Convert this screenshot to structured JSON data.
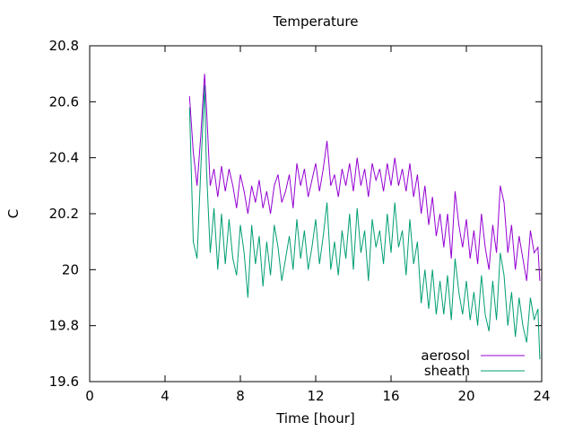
{
  "chart_data": {
    "type": "line",
    "title": "Temperature",
    "xlabel": "Time [hour]",
    "ylabel": "C",
    "xlim": [
      0,
      24
    ],
    "ylim": [
      19.6,
      20.8
    ],
    "xticks": [
      0,
      4,
      8,
      12,
      16,
      20,
      24
    ],
    "yticks": [
      19.6,
      19.8,
      20,
      20.2,
      20.4,
      20.6,
      20.8
    ],
    "xtick_labels": [
      "0",
      "4",
      "8",
      "12",
      "16",
      "20",
      "24"
    ],
    "ytick_labels": [
      "19.6",
      "19.8",
      "20",
      "20.2",
      "20.4",
      "20.6",
      "20.8"
    ],
    "grid": false,
    "legend_position": "bottom-right",
    "series": [
      {
        "name": "aerosol",
        "color": "#9400d3",
        "x": [
          5.3,
          5.5,
          5.7,
          5.9,
          6.1,
          6.2,
          6.4,
          6.6,
          6.8,
          7.0,
          7.2,
          7.4,
          7.6,
          7.8,
          8.0,
          8.2,
          8.4,
          8.6,
          8.8,
          9.0,
          9.2,
          9.4,
          9.6,
          9.8,
          10.0,
          10.2,
          10.4,
          10.6,
          10.8,
          11.0,
          11.2,
          11.4,
          11.6,
          11.8,
          12.0,
          12.2,
          12.4,
          12.6,
          12.8,
          13.0,
          13.2,
          13.4,
          13.6,
          13.8,
          14.0,
          14.2,
          14.4,
          14.6,
          14.8,
          15.0,
          15.2,
          15.4,
          15.6,
          15.8,
          16.0,
          16.2,
          16.4,
          16.6,
          16.8,
          17.0,
          17.2,
          17.4,
          17.6,
          17.8,
          18.0,
          18.2,
          18.4,
          18.6,
          18.8,
          19.0,
          19.2,
          19.4,
          19.6,
          19.8,
          20.0,
          20.2,
          20.4,
          20.6,
          20.8,
          21.0,
          21.2,
          21.4,
          21.6,
          21.8,
          22.0,
          22.2,
          22.4,
          22.6,
          22.8,
          23.0,
          23.2,
          23.4,
          23.6,
          23.8,
          23.9
        ],
        "values": [
          20.62,
          20.42,
          20.3,
          20.48,
          20.7,
          20.58,
          20.3,
          20.36,
          20.26,
          20.37,
          20.28,
          20.36,
          20.3,
          20.22,
          20.34,
          20.28,
          20.2,
          20.3,
          20.24,
          20.32,
          20.22,
          20.28,
          20.2,
          20.3,
          20.34,
          20.24,
          20.28,
          20.34,
          20.22,
          20.38,
          20.3,
          20.36,
          20.26,
          20.32,
          20.38,
          20.28,
          20.36,
          20.46,
          20.3,
          20.34,
          20.26,
          20.36,
          20.3,
          20.38,
          20.28,
          20.4,
          20.3,
          20.36,
          20.26,
          20.38,
          20.32,
          20.36,
          20.28,
          20.38,
          20.3,
          20.4,
          20.3,
          20.36,
          20.28,
          20.38,
          20.26,
          20.34,
          20.2,
          20.3,
          20.16,
          20.26,
          20.12,
          20.2,
          20.08,
          20.2,
          20.04,
          20.28,
          20.16,
          20.08,
          20.18,
          20.04,
          20.14,
          20.02,
          20.2,
          20.08,
          20.0,
          20.16,
          20.06,
          20.3,
          20.24,
          20.06,
          20.16,
          20.0,
          20.12,
          20.04,
          19.96,
          20.14,
          20.06,
          20.08,
          19.96
        ]
      },
      {
        "name": "sheath",
        "color": "#009e73",
        "x": [
          5.3,
          5.5,
          5.7,
          5.9,
          6.1,
          6.2,
          6.4,
          6.6,
          6.8,
          7.0,
          7.2,
          7.4,
          7.6,
          7.8,
          8.0,
          8.2,
          8.4,
          8.6,
          8.8,
          9.0,
          9.2,
          9.4,
          9.6,
          9.8,
          10.0,
          10.2,
          10.4,
          10.6,
          10.8,
          11.0,
          11.2,
          11.4,
          11.6,
          11.8,
          12.0,
          12.2,
          12.4,
          12.6,
          12.8,
          13.0,
          13.2,
          13.4,
          13.6,
          13.8,
          14.0,
          14.2,
          14.4,
          14.6,
          14.8,
          15.0,
          15.2,
          15.4,
          15.6,
          15.8,
          16.0,
          16.2,
          16.4,
          16.6,
          16.8,
          17.0,
          17.2,
          17.4,
          17.6,
          17.8,
          18.0,
          18.2,
          18.4,
          18.6,
          18.8,
          19.0,
          19.2,
          19.4,
          19.6,
          19.8,
          20.0,
          20.2,
          20.4,
          20.6,
          20.8,
          21.0,
          21.2,
          21.4,
          21.6,
          21.8,
          22.0,
          22.2,
          22.4,
          22.6,
          22.8,
          23.0,
          23.2,
          23.4,
          23.6,
          23.8,
          23.9
        ],
        "values": [
          20.58,
          20.1,
          20.04,
          20.36,
          20.66,
          20.36,
          20.06,
          20.22,
          20.0,
          20.2,
          20.02,
          20.18,
          20.04,
          19.98,
          20.16,
          20.06,
          19.9,
          20.16,
          20.02,
          20.12,
          19.94,
          20.1,
          19.98,
          20.16,
          20.08,
          19.96,
          20.04,
          20.12,
          20.0,
          20.18,
          20.04,
          20.14,
          20.0,
          20.08,
          20.18,
          20.02,
          20.12,
          20.24,
          20.0,
          20.1,
          19.98,
          20.14,
          20.04,
          20.2,
          20.0,
          20.22,
          20.06,
          20.14,
          19.96,
          20.18,
          20.08,
          20.14,
          20.02,
          20.2,
          20.06,
          20.24,
          20.08,
          20.14,
          19.98,
          20.18,
          20.02,
          20.1,
          19.88,
          20.0,
          19.86,
          20.0,
          19.84,
          19.96,
          19.84,
          19.98,
          19.82,
          20.04,
          19.92,
          19.84,
          19.96,
          19.82,
          19.92,
          19.8,
          19.98,
          19.84,
          19.78,
          19.96,
          19.82,
          20.06,
          19.98,
          19.8,
          19.92,
          19.76,
          19.9,
          19.8,
          19.74,
          19.9,
          19.82,
          19.86,
          19.68
        ]
      }
    ]
  }
}
